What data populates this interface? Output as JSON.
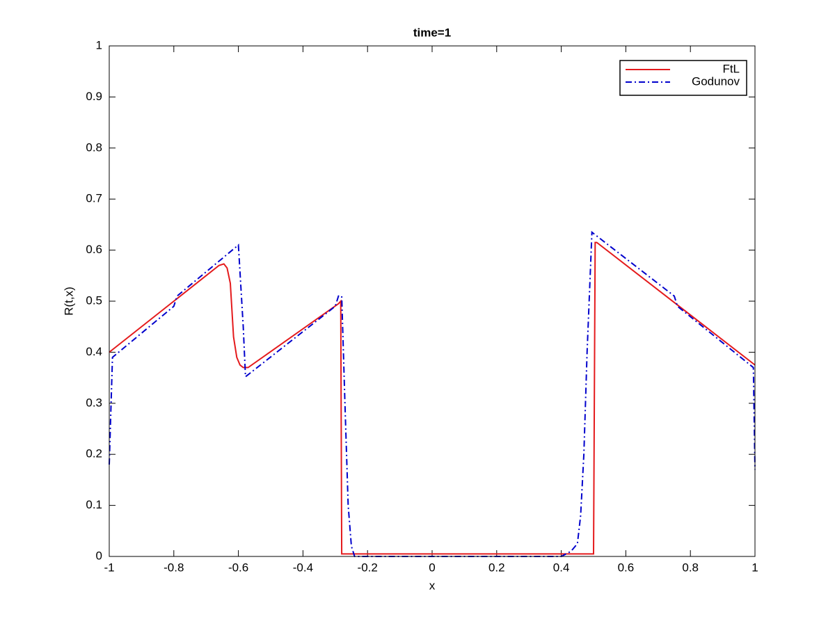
{
  "chart_data": {
    "type": "line",
    "title": "time=1",
    "x_label": "x",
    "y_label": "R(t,x)",
    "xlim": [
      -1,
      1
    ],
    "ylim": [
      0,
      1
    ],
    "xticks": [
      -1,
      -0.8,
      -0.6,
      -0.4,
      -0.2,
      0,
      0.2,
      0.4,
      0.6,
      0.8,
      1
    ],
    "yticks": [
      0,
      0.1,
      0.2,
      0.3,
      0.4,
      0.5,
      0.6,
      0.7,
      0.8,
      0.9,
      1
    ],
    "grid": false,
    "legend": "northeast",
    "series": [
      {
        "name": "FtL",
        "color": "#e41a1c",
        "linestyle": "solid",
        "x": [
          -1,
          -0.8,
          -0.66,
          -0.645,
          -0.635,
          -0.625,
          -0.615,
          -0.605,
          -0.595,
          -0.585,
          -0.57,
          -0.29,
          -0.283,
          -0.28,
          0.5,
          0.505,
          0.51,
          1
        ],
        "values": [
          0.4,
          0.5,
          0.57,
          0.573,
          0.565,
          0.535,
          0.43,
          0.39,
          0.375,
          0.37,
          0.37,
          0.495,
          0.5,
          0.005,
          0.005,
          0.615,
          0.615,
          0.375
        ]
      },
      {
        "name": "Godunov",
        "color": "#0000cc",
        "linestyle": "dashdot",
        "x": [
          -1,
          -0.99,
          -0.8,
          -0.79,
          -0.6,
          -0.585,
          -0.578,
          -0.3,
          -0.29,
          -0.28,
          -0.27,
          -0.26,
          -0.25,
          -0.24,
          0.4,
          0.43,
          0.45,
          0.46,
          0.47,
          0.48,
          0.495,
          0.75,
          0.76,
          0.995,
          1
        ],
        "values": [
          0.18,
          0.39,
          0.49,
          0.51,
          0.61,
          0.45,
          0.352,
          0.49,
          0.51,
          0.51,
          0.3,
          0.1,
          0.02,
          0,
          0,
          0.01,
          0.025,
          0.08,
          0.2,
          0.4,
          0.635,
          0.51,
          0.49,
          0.37,
          0.17
        ]
      }
    ]
  }
}
